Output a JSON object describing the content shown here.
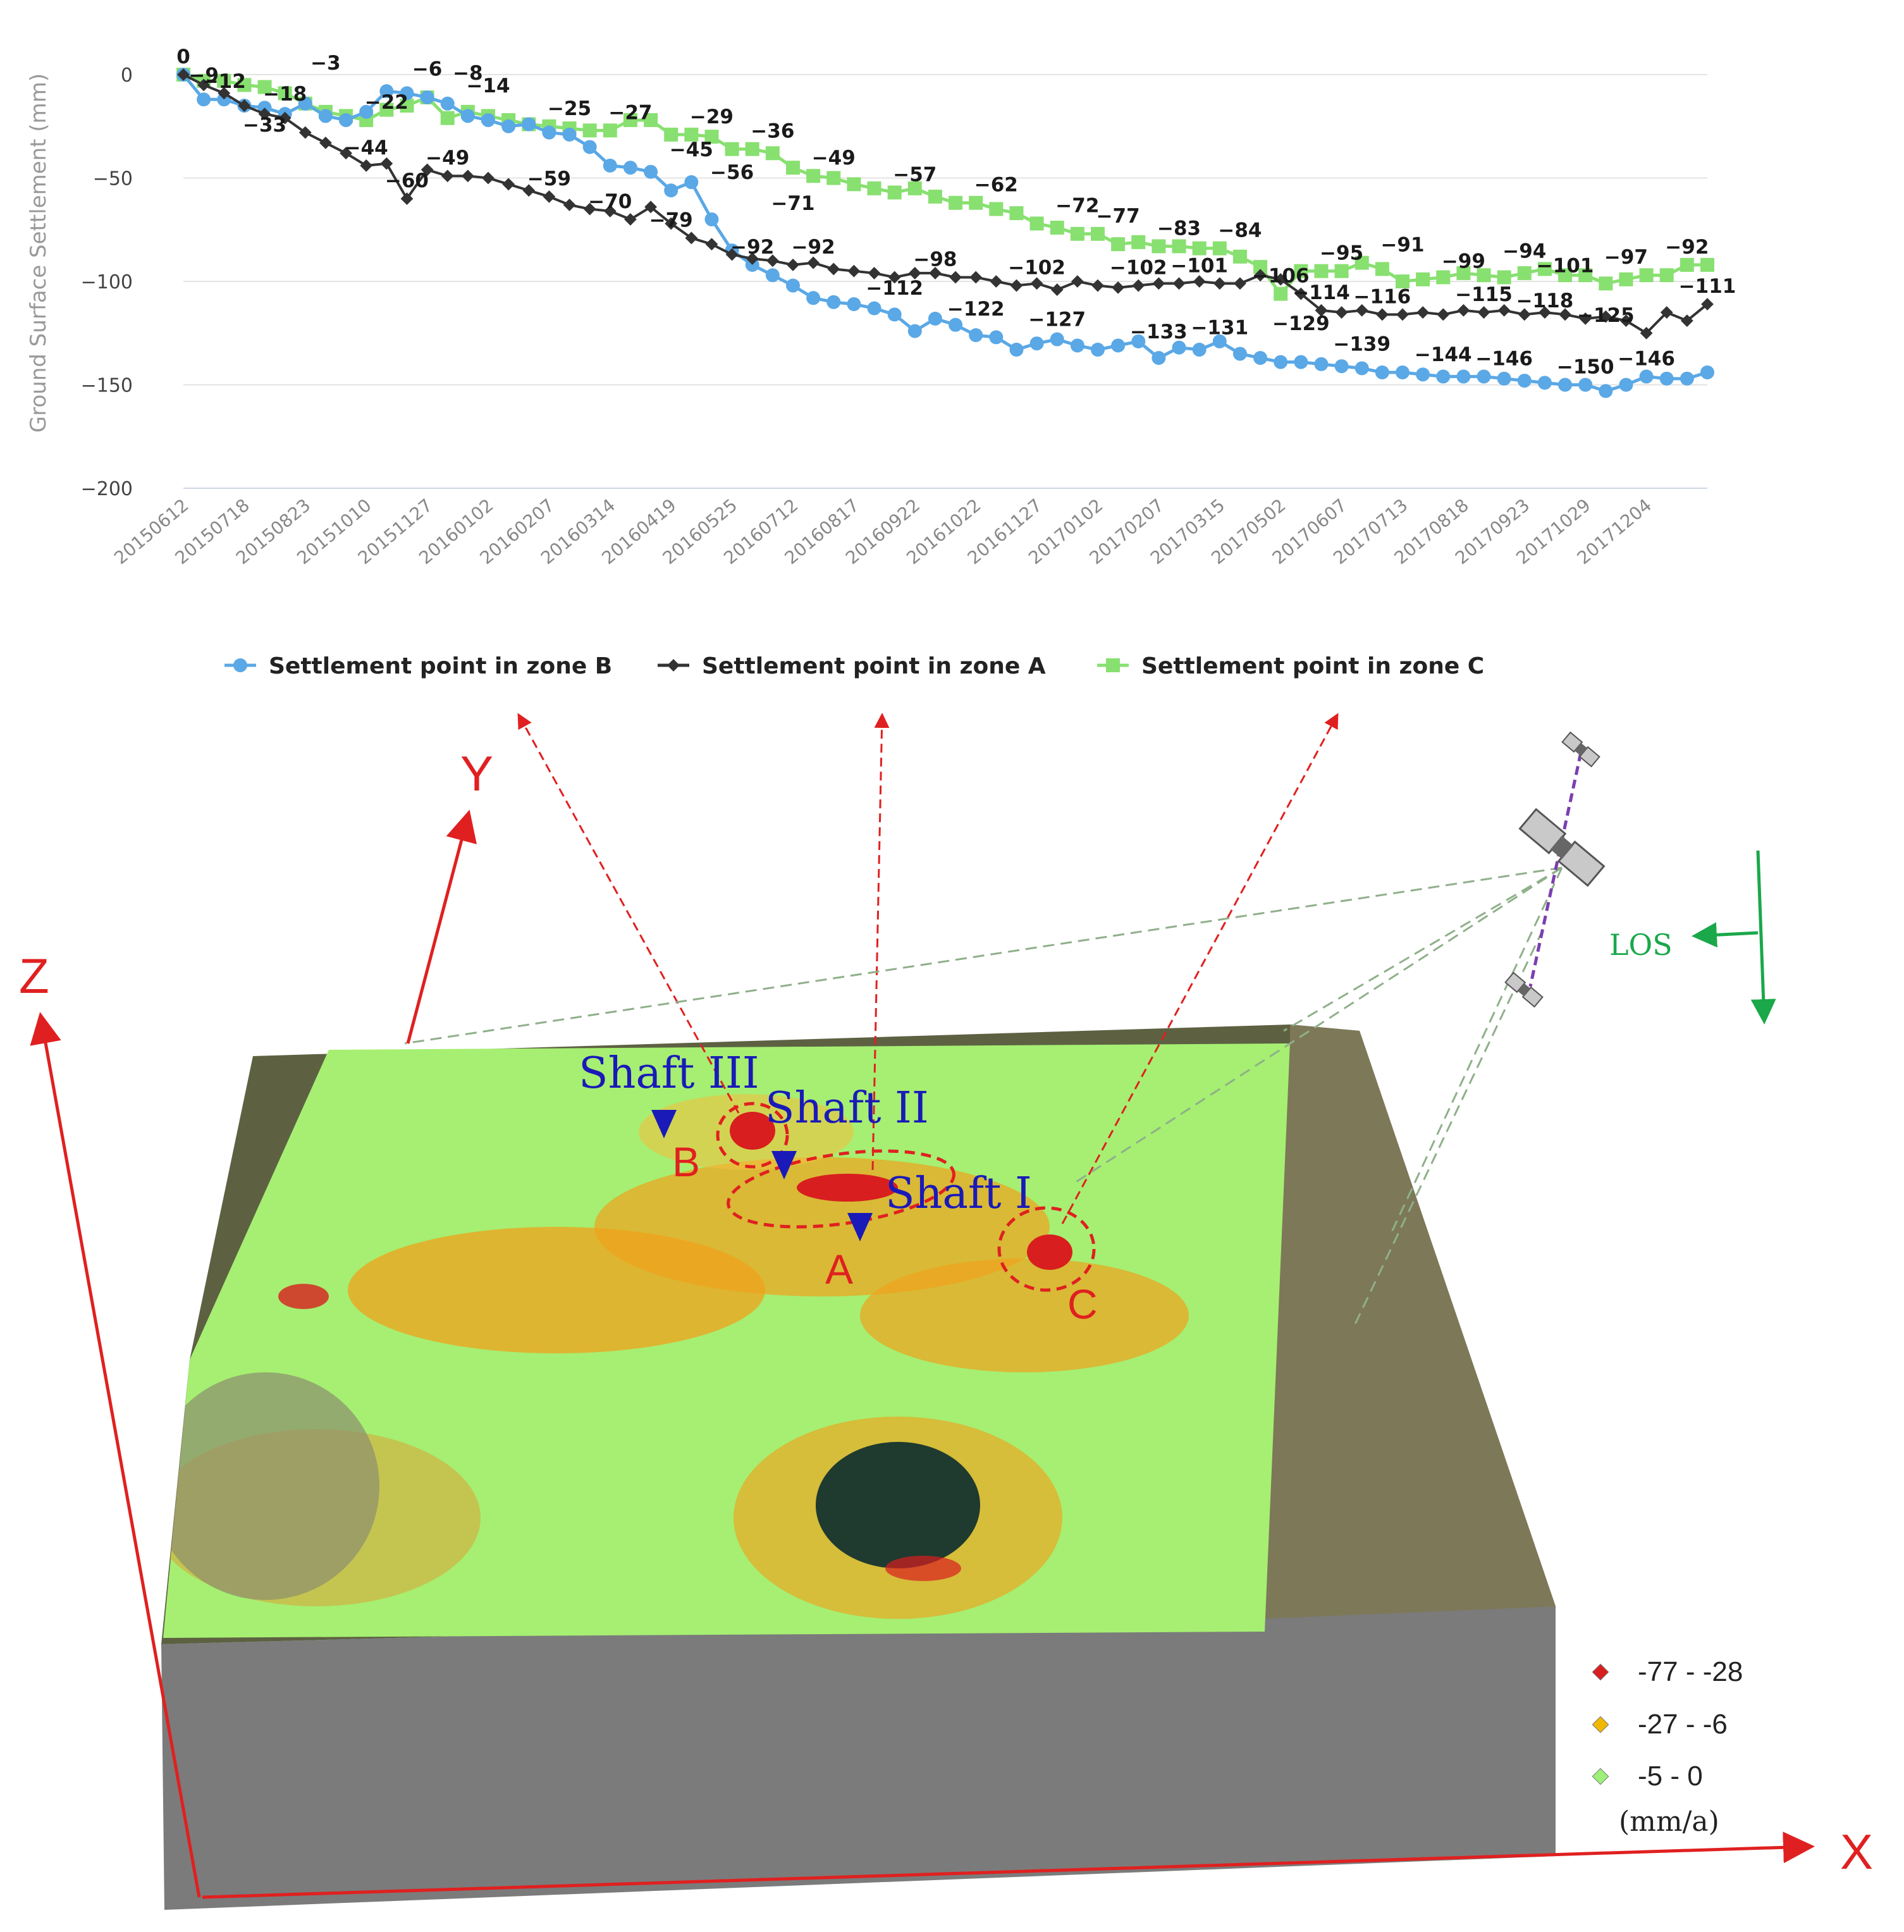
{
  "chart_data": {
    "type": "line",
    "ylabel": "Ground Surface Settlement (mm)",
    "ylim": [
      -200,
      10
    ],
    "yticks": [
      0,
      -50,
      -100,
      -150,
      -200
    ],
    "grid": true,
    "legend_position": "bottom",
    "x_tick_labels": [
      "20150612",
      "20150718",
      "20150823",
      "20151010",
      "20151127",
      "20160102",
      "20160207",
      "20160314",
      "20160419",
      "20160525",
      "20160712",
      "20160817",
      "20160922",
      "20161022",
      "20161127",
      "20170102",
      "20170207",
      "20170315",
      "20170502",
      "20170607",
      "20170713",
      "20170818",
      "20170923",
      "20171029",
      "20171204"
    ],
    "n_points": 76,
    "series": [
      {
        "name": "Settlement point in zone B",
        "color": "#5aa8e6",
        "marker": "circle",
        "values": [
          0,
          -12,
          -12,
          -15,
          -16,
          -19,
          -14,
          -20,
          -22,
          -18,
          -8,
          -9,
          -11,
          -14,
          -20,
          -22,
          -25,
          -24,
          -28,
          -29,
          -35,
          -44,
          -45,
          -47,
          -56,
          -52,
          -70,
          -85,
          -92,
          -97,
          -102,
          -108,
          -110,
          -111,
          -113,
          -116,
          -124,
          -118,
          -121,
          -126,
          -127,
          -133,
          -130,
          -128,
          -131,
          -133,
          -131,
          -129,
          -137,
          -132,
          -133,
          -129,
          -135,
          -137,
          -139,
          -139,
          -140,
          -141,
          -142,
          -144,
          -144,
          -145,
          -146,
          -146,
          -146,
          -147,
          -148,
          -149,
          -150,
          -150,
          -153,
          -150,
          -146,
          -147,
          -147,
          -144
        ]
      },
      {
        "name": "Settlement point in zone A",
        "color": "#333333",
        "marker": "diamond",
        "values": [
          0,
          -5,
          -9,
          -15,
          -19,
          -21,
          -28,
          -33,
          -38,
          -44,
          -43,
          -60,
          -46,
          -49,
          -49,
          -50,
          -53,
          -56,
          -59,
          -63,
          -65,
          -66,
          -70,
          -64,
          -72,
          -79,
          -82,
          -87,
          -89,
          -90,
          -92,
          -91,
          -94,
          -95,
          -96,
          -98,
          -96,
          -96,
          -98,
          -98,
          -100,
          -102,
          -101,
          -104,
          -100,
          -102,
          -103,
          -102,
          -101,
          -101,
          -100,
          -101,
          -101,
          -97,
          -99,
          -106,
          -114,
          -115,
          -114,
          -116,
          -116,
          -115,
          -116,
          -114,
          -115,
          -114,
          -116,
          -115,
          -116,
          -118,
          -117,
          -119,
          -125,
          -115,
          -119,
          -111
        ]
      },
      {
        "name": "Settlement point in zone C",
        "color": "#88e070",
        "marker": "square",
        "values": [
          0,
          -3,
          -3,
          -5,
          -6,
          -9,
          -14,
          -18,
          -20,
          -22,
          -17,
          -15,
          -11,
          -21,
          -18,
          -20,
          -22,
          -24,
          -25,
          -26,
          -27,
          -27,
          -22,
          -22,
          -29,
          -29,
          -30,
          -36,
          -36,
          -38,
          -45,
          -49,
          -50,
          -53,
          -55,
          -57,
          -55,
          -59,
          -62,
          -62,
          -65,
          -67,
          -72,
          -74,
          -77,
          -77,
          -82,
          -81,
          -83,
          -83,
          -84,
          -84,
          -88,
          -93,
          -106,
          -95,
          -95,
          -95,
          -91,
          -94,
          -100,
          -99,
          -98,
          -96,
          -97,
          -98,
          -96,
          -94,
          -97,
          -97,
          -101,
          -99,
          -97,
          -97,
          -92,
          -92
        ]
      }
    ],
    "data_labels": [
      {
        "i": 0,
        "v": 0,
        "t": "0"
      },
      {
        "i": 1,
        "v": -9,
        "t": "-9"
      },
      {
        "i": 2,
        "v": -12,
        "t": "-12"
      },
      {
        "i": 4,
        "v": -33,
        "t": "-33"
      },
      {
        "i": 5,
        "v": -18,
        "t": "-18"
      },
      {
        "i": 7,
        "v": -3,
        "t": "-3"
      },
      {
        "i": 9,
        "v": -44,
        "t": "-44"
      },
      {
        "i": 10,
        "v": -22,
        "t": "-22"
      },
      {
        "i": 11,
        "v": -60,
        "t": "-60"
      },
      {
        "i": 12,
        "v": -6,
        "t": "-6"
      },
      {
        "i": 13,
        "v": -49,
        "t": "-49"
      },
      {
        "i": 14,
        "v": -8,
        "t": "-8"
      },
      {
        "i": 15,
        "v": -14,
        "t": "-14"
      },
      {
        "i": 18,
        "v": -59,
        "t": "-59"
      },
      {
        "i": 19,
        "v": -25,
        "t": "-25"
      },
      {
        "i": 21,
        "v": -70,
        "t": "-70"
      },
      {
        "i": 22,
        "v": -27,
        "t": "-27"
      },
      {
        "i": 24,
        "v": -79,
        "t": "-79"
      },
      {
        "i": 25,
        "v": -45,
        "t": "-45"
      },
      {
        "i": 26,
        "v": -29,
        "t": "-29"
      },
      {
        "i": 27,
        "v": -56,
        "t": "-56"
      },
      {
        "i": 28,
        "v": -92,
        "t": "-92"
      },
      {
        "i": 29,
        "v": -36,
        "t": "-36"
      },
      {
        "i": 30,
        "v": -71,
        "t": "-71"
      },
      {
        "i": 31,
        "v": -92,
        "t": "-92"
      },
      {
        "i": 32,
        "v": -49,
        "t": "-49"
      },
      {
        "i": 35,
        "v": -112,
        "t": "-112"
      },
      {
        "i": 36,
        "v": -57,
        "t": "-57"
      },
      {
        "i": 37,
        "v": -98,
        "t": "-98"
      },
      {
        "i": 39,
        "v": -122,
        "t": "-122"
      },
      {
        "i": 40,
        "v": -62,
        "t": "-62"
      },
      {
        "i": 42,
        "v": -102,
        "t": "-102"
      },
      {
        "i": 43,
        "v": -127,
        "t": "-127"
      },
      {
        "i": 44,
        "v": -72,
        "t": "-72"
      },
      {
        "i": 46,
        "v": -77,
        "t": "-77"
      },
      {
        "i": 47,
        "v": -102,
        "t": "-102"
      },
      {
        "i": 48,
        "v": -133,
        "t": "-133"
      },
      {
        "i": 49,
        "v": -83,
        "t": "-83"
      },
      {
        "i": 50,
        "v": -101,
        "t": "-101"
      },
      {
        "i": 51,
        "v": -131,
        "t": "-131"
      },
      {
        "i": 52,
        "v": -84,
        "t": "-84"
      },
      {
        "i": 54,
        "v": -106,
        "t": "-106"
      },
      {
        "i": 55,
        "v": -129,
        "t": "-129"
      },
      {
        "i": 56,
        "v": -114,
        "t": "-114"
      },
      {
        "i": 57,
        "v": -95,
        "t": "-95"
      },
      {
        "i": 58,
        "v": -139,
        "t": "-139"
      },
      {
        "i": 59,
        "v": -116,
        "t": "-116"
      },
      {
        "i": 60,
        "v": -91,
        "t": "-91"
      },
      {
        "i": 62,
        "v": -144,
        "t": "-144"
      },
      {
        "i": 63,
        "v": -99,
        "t": "-99"
      },
      {
        "i": 64,
        "v": -115,
        "t": "-115"
      },
      {
        "i": 65,
        "v": -146,
        "t": "-146"
      },
      {
        "i": 66,
        "v": -94,
        "t": "-94"
      },
      {
        "i": 67,
        "v": -118,
        "t": "-118"
      },
      {
        "i": 68,
        "v": -101,
        "t": "-101"
      },
      {
        "i": 69,
        "v": -150,
        "t": "-150"
      },
      {
        "i": 70,
        "v": -125,
        "t": "-125"
      },
      {
        "i": 71,
        "v": -97,
        "t": "-97"
      },
      {
        "i": 72,
        "v": -146,
        "t": "-146"
      },
      {
        "i": 74,
        "v": -92,
        "t": "-92"
      },
      {
        "i": 75,
        "v": -111,
        "t": "-111"
      }
    ]
  },
  "scene": {
    "axis_x": "X",
    "axis_y": "Y",
    "axis_z": "Z",
    "los_label": "LOS",
    "shaft_1": "Shaft I",
    "shaft_2": "Shaft II",
    "shaft_3": "Shaft III",
    "zone_a": "A",
    "zone_b": "B",
    "zone_c": "C",
    "legend": {
      "items": [
        {
          "label": "-77 - -28",
          "color": "#d81e1e"
        },
        {
          "label": "-27 - -6",
          "color": "#f0b800"
        },
        {
          "label": "-5 - 0",
          "color": "#9cf07a"
        }
      ],
      "unit": "(mm/a)"
    },
    "colors": {
      "axis_red": "#e02020",
      "shaft_blue": "#1a1ab8",
      "los_green": "#1aa84a",
      "terrain_green": "#a6ef72",
      "terrain_orange": "#f0a21c",
      "block_gray": "#7a7a7a"
    }
  }
}
